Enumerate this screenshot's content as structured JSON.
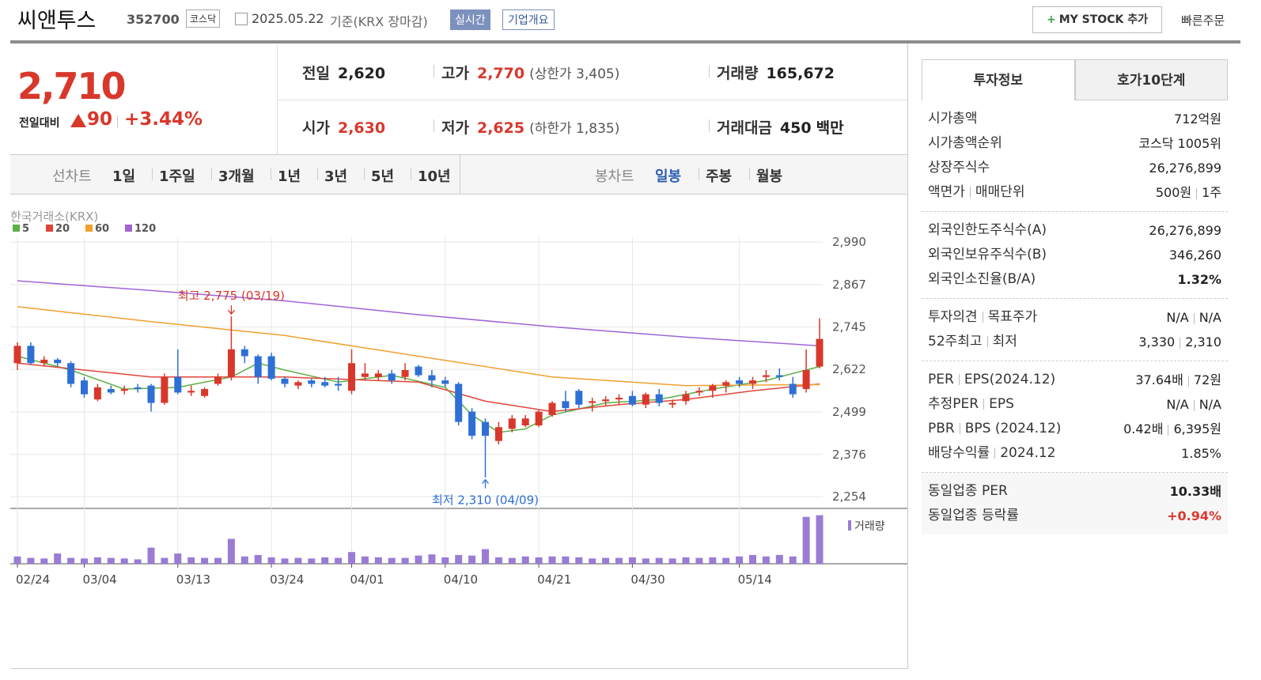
{
  "header": {
    "name": "씨앤투스",
    "code": "352700",
    "market": "코스닥",
    "date": "2025.05.22",
    "basis": "기준(KRX 장마감)",
    "realtime": "실시간",
    "company": "기업개요",
    "mystock": "MY STOCK 추가",
    "quick_order": "빠른주문"
  },
  "price": {
    "current": "2,710",
    "change_label": "전일대비",
    "change": "90",
    "change_rate": "+3.44%"
  },
  "quote": [
    {
      "label": "전일",
      "value": "2,620"
    },
    {
      "label": "고가",
      "value": "2,770",
      "note": "(상한가 3,405)"
    },
    {
      "label": "거래량",
      "value": "165,672"
    },
    {
      "label": "시가",
      "value": "2,630"
    },
    {
      "label": "저가",
      "value": "2,625",
      "note": "(하한가 1,835)"
    },
    {
      "label": "거래대금",
      "value": "450",
      "unit": "백만"
    }
  ],
  "line_tabs": {
    "title": "선차트",
    "items": [
      "1일",
      "1주일",
      "3개월",
      "1년",
      "3년",
      "5년",
      "10년"
    ]
  },
  "candle_tabs": {
    "title": "봉차트",
    "items": [
      "일봉",
      "주봉",
      "월봉"
    ],
    "selected": "일봉"
  },
  "chart_data": {
    "type": "candlestick",
    "source": "한국거래소(KRX)",
    "categories": [
      "02/24",
      null,
      null,
      null,
      null,
      "03/04",
      null,
      null,
      null,
      null,
      null,
      null,
      "03/13",
      null,
      null,
      null,
      null,
      null,
      null,
      "03/24",
      null,
      null,
      null,
      null,
      null,
      "04/01",
      null,
      null,
      null,
      null,
      null,
      null,
      "04/10",
      null,
      null,
      null,
      null,
      null,
      null,
      "04/21",
      null,
      null,
      null,
      null,
      null,
      null,
      "04/30",
      null,
      null,
      null,
      null,
      null,
      null,
      null,
      "05/14",
      null,
      null,
      null,
      null,
      null,
      null
    ],
    "open": [
      2640,
      2690,
      2640,
      2650,
      2640,
      2590,
      2535,
      2565,
      2560,
      2570,
      2575,
      2525,
      2600,
      2555,
      2545,
      2580,
      2600,
      2680,
      2660,
      2660,
      2595,
      2575,
      2590,
      2585,
      2580,
      2560,
      2600,
      2600,
      2610,
      2600,
      2630,
      2605,
      2590,
      2580,
      2500,
      2470,
      2415,
      2450,
      2460,
      2460,
      2490,
      2530,
      2560,
      2525,
      2530,
      2535,
      2545,
      2520,
      2550,
      2520,
      2530,
      2555,
      2560,
      2575,
      2590,
      2580,
      2600,
      2605,
      2580,
      2565,
      2630
    ],
    "high": [
      2700,
      2700,
      2660,
      2655,
      2645,
      2600,
      2580,
      2575,
      2575,
      2580,
      2580,
      2610,
      2680,
      2575,
      2570,
      2610,
      2775,
      2690,
      2665,
      2670,
      2600,
      2590,
      2595,
      2600,
      2600,
      2680,
      2640,
      2620,
      2620,
      2640,
      2635,
      2620,
      2600,
      2585,
      2510,
      2480,
      2470,
      2490,
      2490,
      2505,
      2530,
      2560,
      2565,
      2540,
      2545,
      2550,
      2560,
      2555,
      2565,
      2535,
      2560,
      2570,
      2580,
      2590,
      2600,
      2600,
      2620,
      2625,
      2600,
      2680,
      2770
    ],
    "low": [
      2620,
      2635,
      2630,
      2630,
      2570,
      2540,
      2530,
      2550,
      2550,
      2555,
      2500,
      2520,
      2550,
      2545,
      2540,
      2575,
      2590,
      2640,
      2580,
      2590,
      2570,
      2565,
      2570,
      2570,
      2560,
      2550,
      2590,
      2590,
      2580,
      2590,
      2600,
      2570,
      2570,
      2460,
      2420,
      2310,
      2405,
      2440,
      2455,
      2455,
      2485,
      2500,
      2510,
      2500,
      2515,
      2520,
      2515,
      2510,
      2515,
      2510,
      2520,
      2545,
      2540,
      2555,
      2570,
      2565,
      2585,
      2590,
      2540,
      2555,
      2625
    ],
    "close": [
      2690,
      2640,
      2650,
      2640,
      2580,
      2550,
      2570,
      2555,
      2565,
      2565,
      2525,
      2600,
      2555,
      2560,
      2565,
      2600,
      2680,
      2660,
      2600,
      2595,
      2580,
      2585,
      2580,
      2575,
      2575,
      2640,
      2610,
      2610,
      2590,
      2620,
      2605,
      2590,
      2580,
      2470,
      2430,
      2430,
      2455,
      2480,
      2480,
      2500,
      2525,
      2510,
      2520,
      2530,
      2535,
      2540,
      2520,
      2550,
      2525,
      2525,
      2550,
      2560,
      2575,
      2585,
      2580,
      2590,
      2605,
      2600,
      2550,
      2620,
      2710
    ],
    "up_color": "#d8382c",
    "down_color": "#2e6fd6",
    "ylim": [
      2220,
      3004
    ],
    "yticks": [
      {
        "value": 2990,
        "label": "2,990"
      },
      {
        "value": 2867,
        "label": "2,867"
      },
      {
        "value": 2745,
        "label": "2,745"
      },
      {
        "value": 2622,
        "label": "2,622"
      },
      {
        "value": 2499,
        "label": "2,499"
      },
      {
        "value": 2376,
        "label": "2,376"
      },
      {
        "value": 2254,
        "label": "2,254"
      }
    ],
    "grid": true,
    "ma": [
      {
        "name": "5",
        "color": "#5cb045",
        "x": [
          0,
          4,
          8,
          12,
          16,
          18,
          20,
          24,
          28,
          32,
          34,
          36,
          38,
          40,
          44,
          48,
          52,
          56,
          60
        ],
        "values": [
          2660,
          2620,
          2565,
          2570,
          2600,
          2640,
          2620,
          2585,
          2605,
          2570,
          2490,
          2440,
          2450,
          2490,
          2525,
          2535,
          2565,
          2590,
          2630
        ]
      },
      {
        "name": "20",
        "color": "#e0453a",
        "x": [
          0,
          10,
          20,
          30,
          35,
          40,
          45,
          50,
          55,
          60
        ],
        "values": [
          2640,
          2600,
          2600,
          2585,
          2530,
          2500,
          2520,
          2535,
          2560,
          2580
        ]
      },
      {
        "name": "60",
        "color": "#f0a030",
        "x": [
          0,
          10,
          20,
          30,
          40,
          50,
          60
        ],
        "values": [
          2803,
          2760,
          2720,
          2660,
          2600,
          2575,
          2578
        ]
      },
      {
        "name": "120",
        "color": "#a064d8",
        "x": [
          0,
          10,
          20,
          30,
          40,
          50,
          60
        ],
        "values": [
          2878,
          2850,
          2820,
          2780,
          2745,
          2715,
          2690
        ]
      }
    ],
    "volume": {
      "name": "거래량",
      "color": "#9a7cd4",
      "ylim": [
        0,
        170000
      ],
      "values": [
        25000,
        20000,
        18000,
        35000,
        20000,
        18000,
        22000,
        20000,
        18000,
        15000,
        55000,
        20000,
        35000,
        22000,
        20000,
        20000,
        85000,
        25000,
        30000,
        22000,
        18000,
        20000,
        18000,
        22000,
        20000,
        40000,
        25000,
        22000,
        20000,
        20000,
        28000,
        32000,
        22000,
        30000,
        28000,
        50000,
        22000,
        20000,
        25000,
        22000,
        25000,
        25000,
        22000,
        18000,
        20000,
        20000,
        22000,
        18000,
        20000,
        18000,
        22000,
        20000,
        22000,
        20000,
        25000,
        30000,
        25000,
        30000,
        25000,
        160000,
        165672
      ]
    },
    "annotations": [
      {
        "text": "최고 2,775 (03/19)",
        "color": "#d8382c"
      },
      {
        "text": "최저 2,310 (04/09)",
        "color": "#2e6fd6"
      }
    ]
  },
  "side": {
    "tabs": [
      "투자정보",
      "호가10단계"
    ],
    "selected": "투자정보",
    "groups": [
      [
        {
          "label": [
            "시가총액"
          ],
          "value": [
            "712억원"
          ]
        },
        {
          "label": [
            "시가총액순위"
          ],
          "value": [
            "코스닥 1005위"
          ]
        },
        {
          "label": [
            "상장주식수"
          ],
          "value": [
            "26,276,899"
          ]
        },
        {
          "label": [
            "액면가",
            "매매단위"
          ],
          "value": [
            "500원",
            "1주"
          ]
        }
      ],
      [
        {
          "label": [
            "외국인한도주식수(A)"
          ],
          "value": [
            "26,276,899"
          ]
        },
        {
          "label": [
            "외국인보유주식수(B)"
          ],
          "value": [
            "346,260"
          ]
        },
        {
          "label": [
            "외국인소진율(B/A)"
          ],
          "value": [
            "1.32%"
          ]
        }
      ],
      [
        {
          "label": [
            "투자의견",
            "목표주가"
          ],
          "value": [
            "N/A",
            "N/A"
          ]
        },
        {
          "label": [
            "52주최고",
            "최저"
          ],
          "value": [
            "3,330",
            "2,310"
          ]
        }
      ],
      [
        {
          "label": [
            "PER",
            "EPS(2024.12)"
          ],
          "value": [
            "37.64배",
            "72원"
          ]
        },
        {
          "label": [
            "추정PER",
            "EPS"
          ],
          "value": [
            "N/A",
            "N/A"
          ]
        },
        {
          "label": [
            "PBR",
            "BPS (2024.12)"
          ],
          "value": [
            "0.42배",
            "6,395원"
          ]
        },
        {
          "label": [
            "배당수익률",
            "2024.12"
          ],
          "value": [
            "1.85%"
          ]
        }
      ],
      [
        {
          "label": [
            "동일업종 PER"
          ],
          "value": [
            "10.33배"
          ]
        },
        {
          "label": [
            "동일업종 등락률"
          ],
          "value": [
            "+0.94%"
          ]
        }
      ]
    ]
  }
}
